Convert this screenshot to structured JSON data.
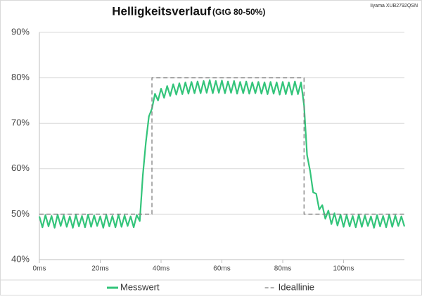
{
  "chart_data": {
    "type": "line",
    "title": "Helligkeitsverlauf",
    "subtitle": "(GtG 80-50%)",
    "annotation": "Iiyama XUB2792QSN",
    "xlim": [
      0,
      120
    ],
    "ylim": [
      40,
      90
    ],
    "xticks": [
      {
        "value": 0,
        "label": "0ms"
      },
      {
        "value": 20,
        "label": "20ms"
      },
      {
        "value": 40,
        "label": "40ms"
      },
      {
        "value": 60,
        "label": "60ms"
      },
      {
        "value": 80,
        "label": "80ms"
      },
      {
        "value": 100,
        "label": "100ms"
      }
    ],
    "yticks": [
      {
        "value": 40,
        "label": "40%"
      },
      {
        "value": 50,
        "label": "50%"
      },
      {
        "value": 60,
        "label": "60%"
      },
      {
        "value": 70,
        "label": "70%"
      },
      {
        "value": 80,
        "label": "80%"
      },
      {
        "value": 90,
        "label": "90%"
      }
    ],
    "grid": true,
    "legend": "bottom",
    "series": [
      {
        "name": "Messwert",
        "color": "#33c47a",
        "dashed": false,
        "x": [
          0,
          1,
          2,
          3,
          4,
          5,
          6,
          7,
          8,
          9,
          10,
          11,
          12,
          13,
          14,
          15,
          16,
          17,
          18,
          19,
          20,
          21,
          22,
          23,
          24,
          25,
          26,
          27,
          28,
          29,
          30,
          31,
          32,
          33,
          34,
          35,
          36,
          37,
          38,
          39,
          40,
          41,
          42,
          43,
          44,
          45,
          46,
          47,
          48,
          49,
          50,
          51,
          52,
          53,
          54,
          55,
          56,
          57,
          58,
          59,
          60,
          61,
          62,
          63,
          64,
          65,
          66,
          67,
          68,
          69,
          70,
          71,
          72,
          73,
          74,
          75,
          76,
          77,
          78,
          79,
          80,
          81,
          82,
          83,
          84,
          85,
          86,
          87,
          88,
          89,
          90,
          91,
          92,
          93,
          94,
          95,
          96,
          97,
          98,
          99,
          100,
          101,
          102,
          103,
          104,
          105,
          106,
          107,
          108,
          109,
          110,
          111,
          112,
          113,
          114,
          115,
          116,
          117,
          118,
          119,
          120
        ],
        "values": [
          49.5,
          47.1,
          49.8,
          47.3,
          49.6,
          47.0,
          49.9,
          47.4,
          49.7,
          47.2,
          49.5,
          47.0,
          49.8,
          47.3,
          49.6,
          47.1,
          49.9,
          47.2,
          49.7,
          47.4,
          49.5,
          47.0,
          49.8,
          47.3,
          49.6,
          47.1,
          49.9,
          47.2,
          49.7,
          47.4,
          49.5,
          47.1,
          49.8,
          48.5,
          58.5,
          65.8,
          71.5,
          73.2,
          76.5,
          75.0,
          77.6,
          75.6,
          78.2,
          76.0,
          78.6,
          76.3,
          78.8,
          76.4,
          79.0,
          76.5,
          79.1,
          76.6,
          79.2,
          76.6,
          79.3,
          76.7,
          79.5,
          76.6,
          79.3,
          76.7,
          79.4,
          76.6,
          79.2,
          76.7,
          79.3,
          76.5,
          79.1,
          76.6,
          79.2,
          76.5,
          79.0,
          76.6,
          79.1,
          76.5,
          79.0,
          76.4,
          79.1,
          76.5,
          79.0,
          76.3,
          79.1,
          76.4,
          79.0,
          76.3,
          79.2,
          76.4,
          79.0,
          74.0,
          63.0,
          59.5,
          54.8,
          54.5,
          51.0,
          52.0,
          49.0,
          50.8,
          47.8,
          50.2,
          47.5,
          49.9,
          47.2,
          49.8,
          47.3,
          49.6,
          47.1,
          49.9,
          47.2,
          49.7,
          47.4,
          49.5,
          47.0,
          49.8,
          47.3,
          49.6,
          47.1,
          49.9,
          47.2,
          49.7,
          47.4,
          49.5,
          47.3
        ]
      },
      {
        "name": "Ideallinie",
        "color": "#808080",
        "dashed": true,
        "x": [
          0,
          37,
          37,
          87,
          87,
          120
        ],
        "values": [
          50,
          50,
          80,
          80,
          50,
          50
        ]
      }
    ]
  }
}
